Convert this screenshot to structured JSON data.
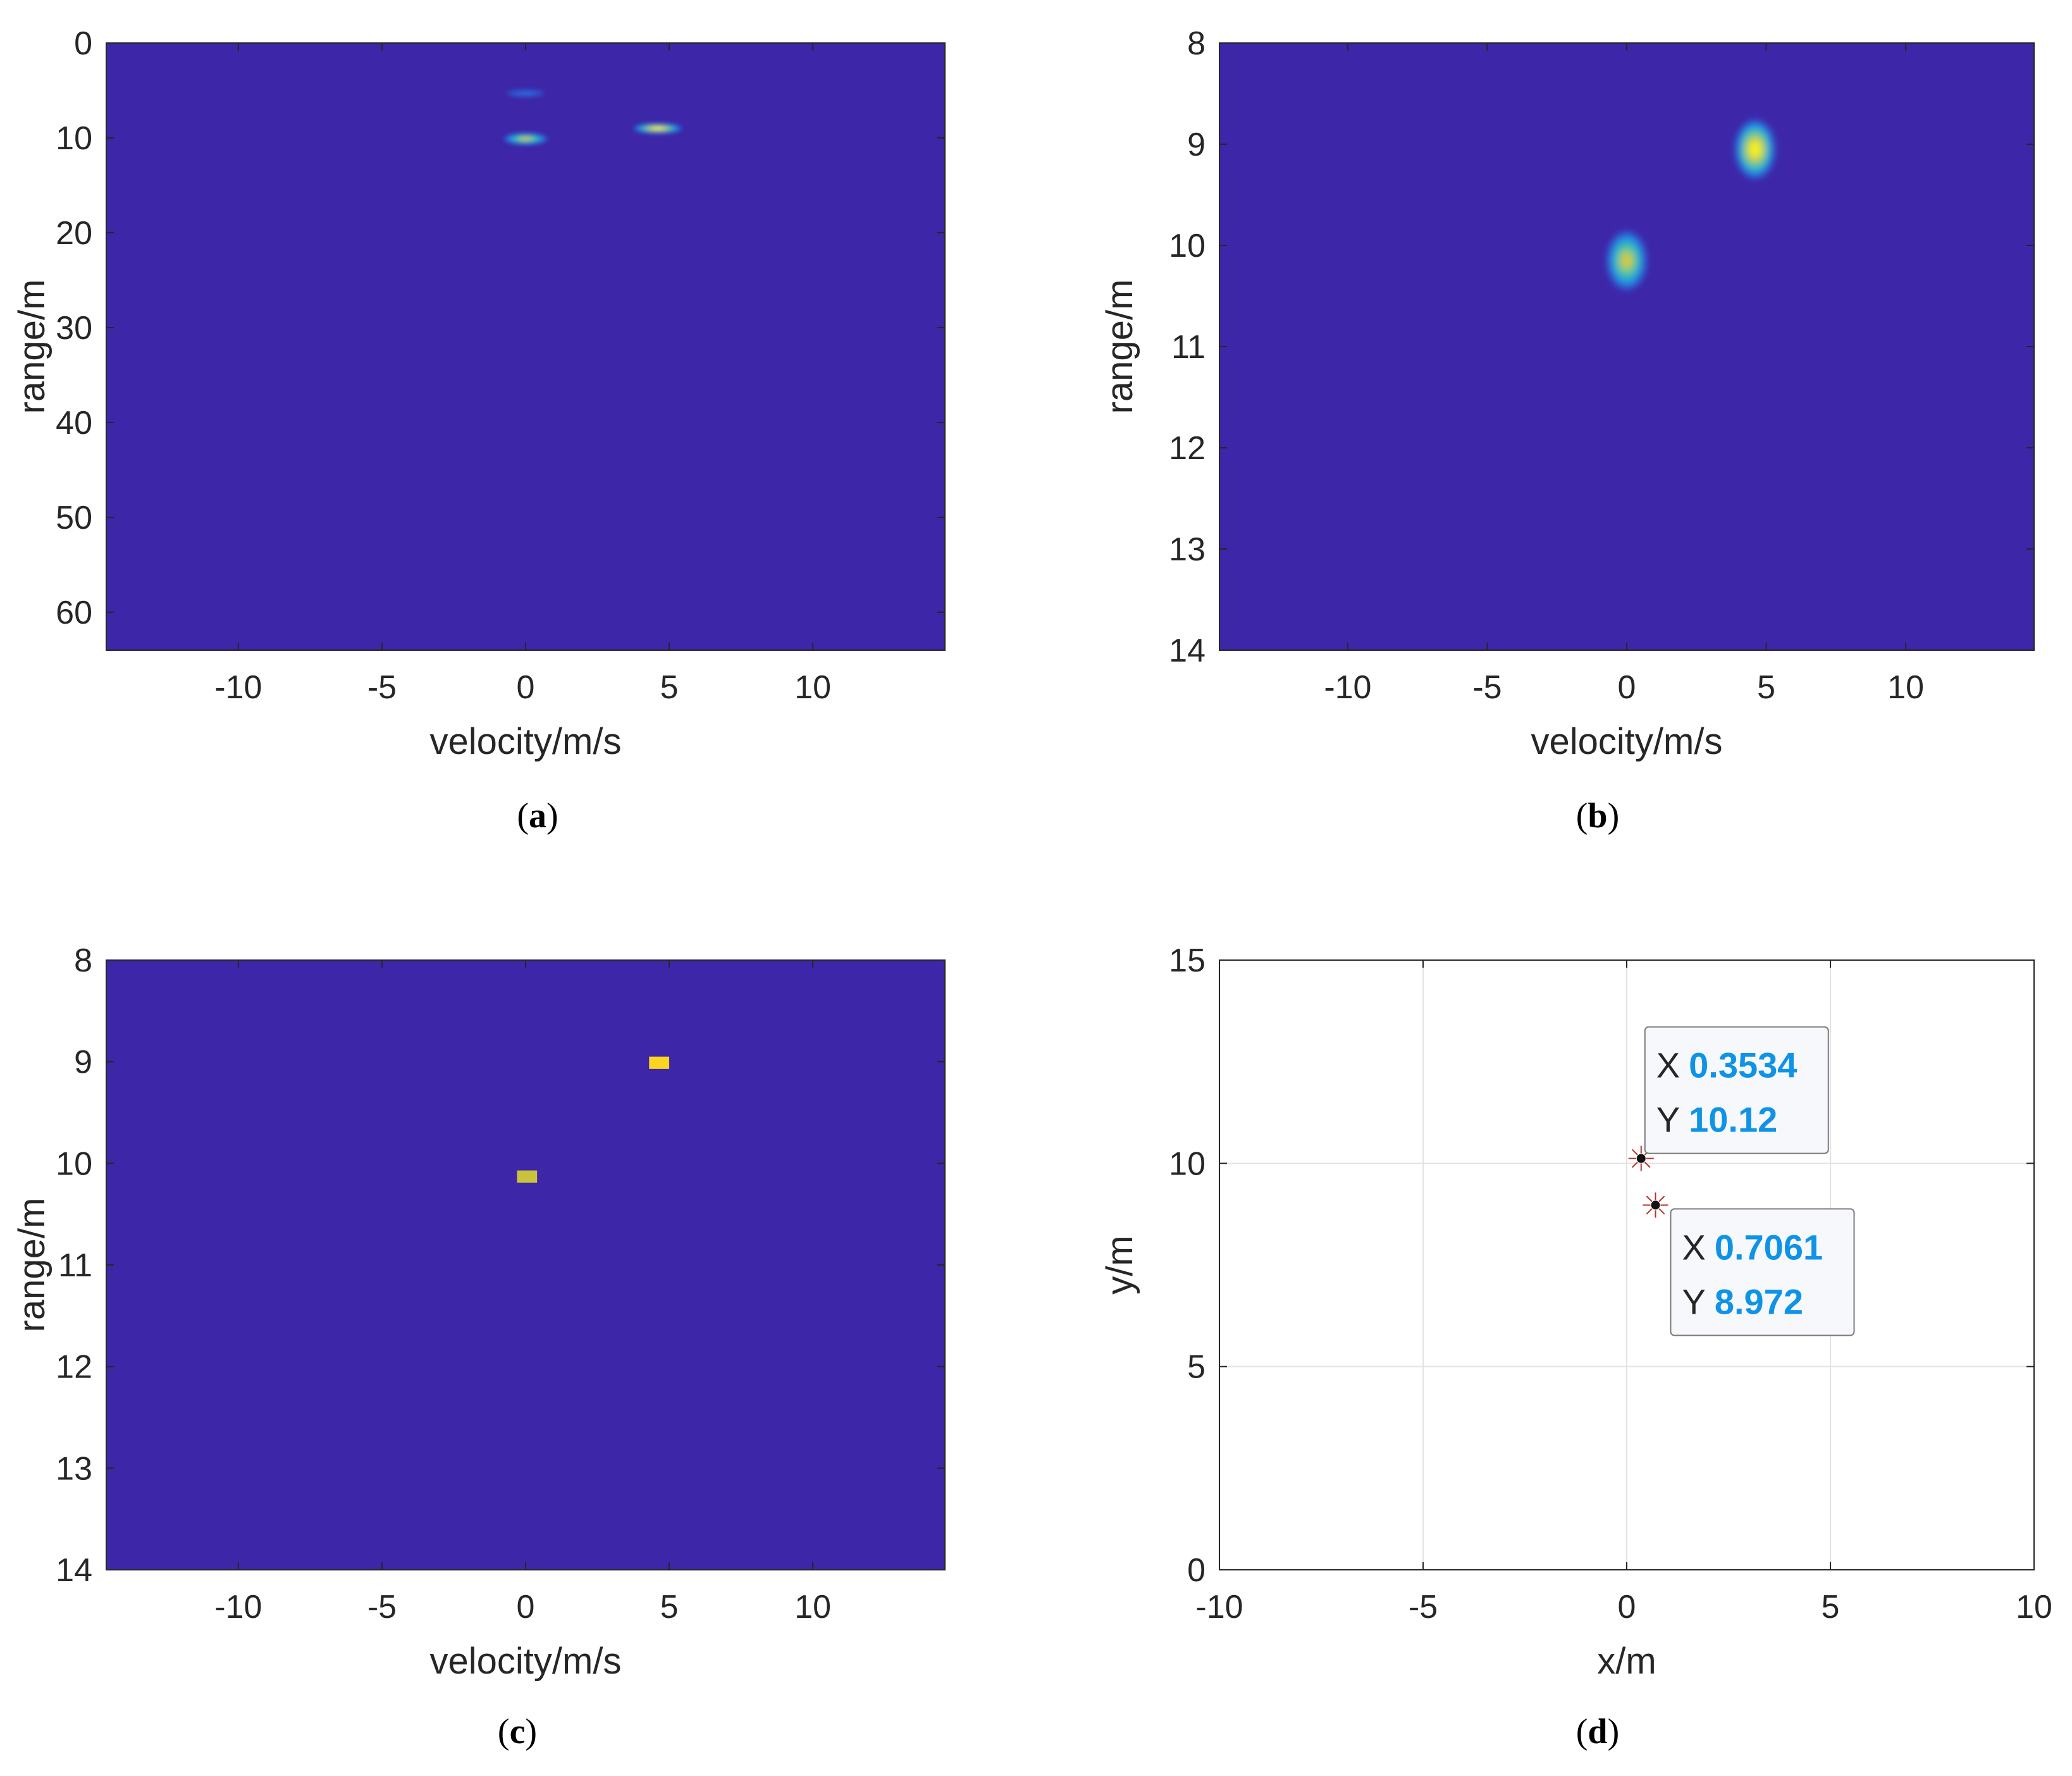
{
  "chart_data": [
    {
      "id": "a",
      "caption_letter": "a",
      "type": "heatmap",
      "xlabel": "velocity/m/s",
      "ylabel": "range/m",
      "xlim": [
        -14.6,
        14.6
      ],
      "ylim": [
        0,
        64
      ],
      "y_reversed": true,
      "xticks": [
        -10,
        -5,
        0,
        5,
        10
      ],
      "yticks": [
        0,
        10,
        20,
        30,
        40,
        50,
        60
      ],
      "background_color": "#3d26a8",
      "peaks": [
        {
          "x": 0.0,
          "y": 10.1,
          "intensity": 0.75,
          "sx": 0.45,
          "sy": 0.35
        },
        {
          "x": 4.6,
          "y": 9.0,
          "intensity": 1.0,
          "sx": 0.5,
          "sy": 0.3
        },
        {
          "x": 0.0,
          "y": 5.3,
          "intensity": 0.15,
          "sx": 0.4,
          "sy": 0.2
        }
      ]
    },
    {
      "id": "b",
      "caption_letter": "b",
      "type": "heatmap",
      "xlabel": "velocity/m/s",
      "ylabel": "range/m",
      "xlim": [
        -14.6,
        14.6
      ],
      "ylim": [
        8,
        14
      ],
      "y_reversed": true,
      "xticks": [
        -10,
        -5,
        0,
        5,
        10
      ],
      "yticks": [
        8,
        9,
        10,
        11,
        12,
        13,
        14
      ],
      "background_color": "#3d26a8",
      "peaks": [
        {
          "x": 0.0,
          "y": 10.15,
          "intensity": 0.78,
          "sx": 0.42,
          "sy": 0.17
        },
        {
          "x": 4.6,
          "y": 9.05,
          "intensity": 1.0,
          "sx": 0.42,
          "sy": 0.17
        }
      ]
    },
    {
      "id": "c",
      "caption_letter": "c",
      "type": "heatmap",
      "xlabel": "velocity/m/s",
      "ylabel": "range/m",
      "xlim": [
        -14.6,
        14.6
      ],
      "ylim": [
        8,
        14
      ],
      "y_reversed": true,
      "xticks": [
        -10,
        -5,
        0,
        5,
        10
      ],
      "yticks": [
        8,
        9,
        10,
        11,
        12,
        13,
        14
      ],
      "background_color": "#3d26a8",
      "cells": [
        {
          "x0": -0.3,
          "x1": 0.4,
          "y0": 10.07,
          "y1": 10.19,
          "color": "#c8c33a"
        },
        {
          "x0": 4.3,
          "x1": 5.0,
          "y0": 8.95,
          "y1": 9.07,
          "color": "#fbd51f"
        }
      ]
    },
    {
      "id": "d",
      "caption_letter": "d",
      "type": "scatter",
      "xlabel": "x/m",
      "ylabel": "y/m",
      "xlim": [
        -10,
        10
      ],
      "ylim": [
        0,
        15
      ],
      "grid": true,
      "xticks": [
        -10,
        -5,
        0,
        5,
        10
      ],
      "yticks": [
        0,
        5,
        10,
        15
      ],
      "points": [
        {
          "x": 0.3534,
          "y": 10.12
        },
        {
          "x": 0.7061,
          "y": 8.972
        }
      ],
      "datatips": [
        {
          "x_label": "X",
          "x_value": "0.3534",
          "y_label": "Y",
          "y_value": "10.12"
        },
        {
          "x_label": "X",
          "x_value": "0.7061",
          "y_label": "Y",
          "y_value": "8.972"
        }
      ],
      "datatip_value_color": "#0f93e6",
      "marker_color": "#b5332a"
    }
  ]
}
